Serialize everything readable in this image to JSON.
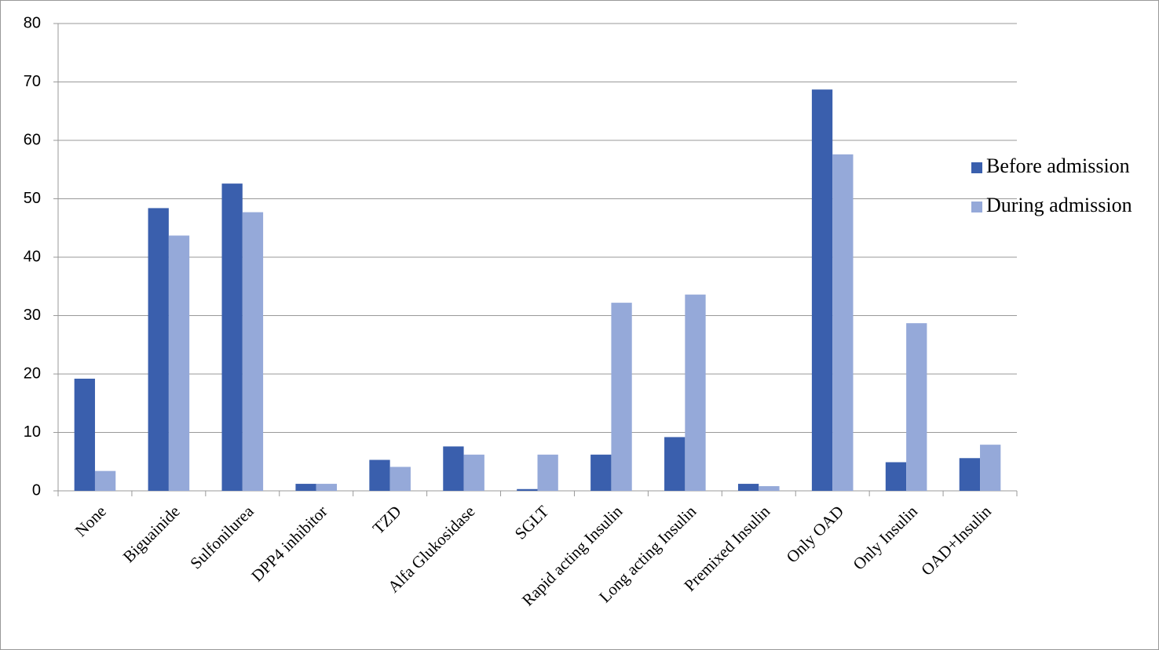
{
  "chart_data": {
    "type": "bar",
    "categories": [
      "None",
      "Biguainide",
      "Sulfonilurea",
      "DPP4 inhibitor",
      "TZD",
      "Alfa Glukosidase",
      "SGLT",
      "Rapid acting Insulin",
      "Long acting Insulin",
      "Premixed Insulin",
      "Only OAD",
      "Only Insulin",
      "OAD+Insulin"
    ],
    "series": [
      {
        "name": "Before admission",
        "color": "#3a5fad",
        "values": [
          19.2,
          48.4,
          52.6,
          1.2,
          5.3,
          7.6,
          0.3,
          6.2,
          9.2,
          1.2,
          68.7,
          4.9,
          5.6
        ]
      },
      {
        "name": "During admission",
        "color": "#95a9d9",
        "values": [
          3.4,
          43.7,
          47.7,
          1.2,
          4.1,
          6.2,
          6.2,
          32.2,
          33.6,
          0.8,
          57.6,
          28.7,
          7.9
        ]
      }
    ],
    "ylim": [
      0,
      80
    ],
    "yticks": [
      0,
      10,
      20,
      30,
      40,
      50,
      60,
      70,
      80
    ],
    "grid": true,
    "legend": "right"
  }
}
